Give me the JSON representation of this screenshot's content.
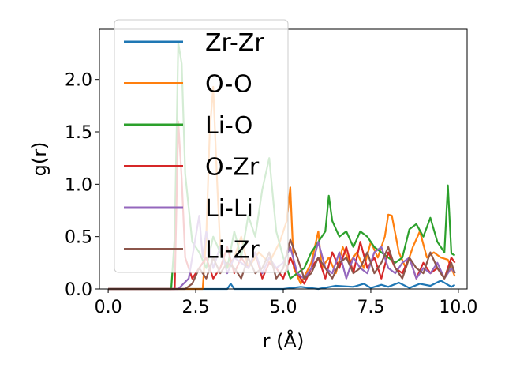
{
  "chart_data": {
    "type": "line",
    "title": "",
    "xlabel": "r (Å)",
    "ylabel": "g(r)",
    "xlim": [
      -0.25,
      10.25
    ],
    "ylim": [
      0.0,
      2.48
    ],
    "xticks": [
      0.0,
      2.5,
      5.0,
      7.5,
      10.0
    ],
    "xtick_labels": [
      "0.0",
      "2.5",
      "5.0",
      "7.5",
      "10.0"
    ],
    "yticks": [
      0.0,
      0.5,
      1.0,
      1.5,
      2.0
    ],
    "ytick_labels": [
      "0.0",
      "0.5",
      "1.0",
      "1.5",
      "2.0"
    ],
    "grid": false,
    "legend_position": "upper-left",
    "series": [
      {
        "name": "Zr-Zr",
        "color": "#1f77b4",
        "x": [
          0,
          1,
          2,
          3,
          3.4,
          3.5,
          3.6,
          4.0,
          5.0,
          5.5,
          6.0,
          6.5,
          7.0,
          7.3,
          7.5,
          7.8,
          8.0,
          8.3,
          8.6,
          8.9,
          9.2,
          9.5,
          9.8,
          9.9
        ],
        "y": [
          0,
          0,
          0,
          0,
          0,
          0.05,
          0,
          0,
          0,
          0.02,
          0,
          0.03,
          0.02,
          0.05,
          0.01,
          0.04,
          0.02,
          0.06,
          0.01,
          0.05,
          0.03,
          0.08,
          0.02,
          0.04
        ]
      },
      {
        "name": "O-O",
        "color": "#ff7f0e",
        "x": [
          0,
          1,
          2,
          2.7,
          2.8,
          2.9,
          3.0,
          3.1,
          3.2,
          3.4,
          3.6,
          3.8,
          4.0,
          4.3,
          4.6,
          4.9,
          5.1,
          5.2,
          5.3,
          5.5,
          5.8,
          6.0,
          6.1,
          6.3,
          6.5,
          6.7,
          6.9,
          7.1,
          7.3,
          7.5,
          7.7,
          7.9,
          8.0,
          8.1,
          8.3,
          8.5,
          8.7,
          8.9,
          9.1,
          9.3,
          9.5,
          9.7,
          9.9
        ],
        "y": [
          0,
          0,
          0,
          0,
          0.5,
          1.5,
          1.93,
          1.1,
          0.4,
          0.2,
          0.3,
          0.5,
          0.2,
          0.35,
          0.25,
          0.45,
          0.65,
          0.97,
          0.2,
          0.05,
          0.25,
          0.55,
          0.2,
          0.3,
          0.15,
          0.4,
          0.25,
          0.35,
          0.2,
          0.45,
          0.3,
          0.5,
          0.71,
          0.7,
          0.35,
          0.2,
          0.4,
          0.55,
          0.3,
          0.35,
          0.3,
          0.28,
          0.12
        ]
      },
      {
        "name": "Li-O",
        "color": "#2ca02c",
        "x": [
          0,
          1,
          1.8,
          1.9,
          2.0,
          2.1,
          2.2,
          2.4,
          2.6,
          2.8,
          3.0,
          3.2,
          3.4,
          3.6,
          3.8,
          4.0,
          4.2,
          4.4,
          4.6,
          4.8,
          5.0,
          5.2,
          5.4,
          5.6,
          5.8,
          6.0,
          6.2,
          6.3,
          6.4,
          6.6,
          6.8,
          7.0,
          7.2,
          7.4,
          7.6,
          7.8,
          8.0,
          8.2,
          8.4,
          8.6,
          8.8,
          9.0,
          9.2,
          9.4,
          9.6,
          9.7,
          9.8,
          9.9
        ],
        "y": [
          0,
          0,
          0,
          0.5,
          2.35,
          2.15,
          1.1,
          0.45,
          0.35,
          0.2,
          0.5,
          0.35,
          0.2,
          0.55,
          0.3,
          0.7,
          0.5,
          0.95,
          1.25,
          0.55,
          0.3,
          0.1,
          0.15,
          0.2,
          0.35,
          0.45,
          0.55,
          0.89,
          0.65,
          0.5,
          0.55,
          0.4,
          0.55,
          0.5,
          0.4,
          0.35,
          0.3,
          0.25,
          0.3,
          0.57,
          0.62,
          0.5,
          0.68,
          0.45,
          0.35,
          0.99,
          0.34,
          0.32
        ]
      },
      {
        "name": "O-Zr",
        "color": "#d62728",
        "x": [
          0,
          1,
          1.9,
          2.0,
          2.1,
          2.2,
          2.4,
          2.6,
          2.8,
          3.0,
          3.2,
          3.4,
          3.6,
          3.8,
          4.0,
          4.2,
          4.4,
          4.6,
          4.8,
          5.0,
          5.2,
          5.4,
          5.6,
          5.8,
          6.0,
          6.2,
          6.4,
          6.6,
          6.8,
          7.0,
          7.2,
          7.4,
          7.6,
          7.8,
          8.0,
          8.2,
          8.4,
          8.6,
          8.8,
          9.0,
          9.2,
          9.4,
          9.6,
          9.8,
          9.9
        ],
        "y": [
          0,
          0,
          0,
          1.6,
          1.05,
          0.3,
          0.1,
          0.2,
          0.3,
          0.1,
          0.2,
          0.4,
          0.15,
          0.3,
          0.2,
          0.35,
          0.1,
          0.25,
          0.2,
          0.1,
          0.3,
          0.15,
          0.05,
          0.2,
          0.3,
          0.1,
          0.35,
          0.2,
          0.4,
          0.15,
          0.45,
          0.2,
          0.3,
          0.1,
          0.35,
          0.2,
          0.15,
          0.3,
          0.1,
          0.25,
          0.15,
          0.2,
          0.1,
          0.3,
          0.25
        ]
      },
      {
        "name": "Li-Li",
        "color": "#9467bd",
        "x": [
          0,
          1,
          2.0,
          2.3,
          2.5,
          2.6,
          2.7,
          2.8,
          3.0,
          3.2,
          3.4,
          3.6,
          3.8,
          4.0,
          4.2,
          4.4,
          4.6,
          4.8,
          5.0,
          5.2,
          5.4,
          5.6,
          5.8,
          6.0,
          6.2,
          6.4,
          6.6,
          6.8,
          7.0,
          7.2,
          7.4,
          7.6,
          7.8,
          8.0,
          8.2,
          8.4,
          8.6,
          8.8,
          9.0,
          9.2,
          9.4,
          9.6,
          9.8,
          9.9
        ],
        "y": [
          0,
          0,
          0,
          0.1,
          0.5,
          0.7,
          0.3,
          0.55,
          0.2,
          0.4,
          0.15,
          0.3,
          0.25,
          0.2,
          0.35,
          0.15,
          0.3,
          0.2,
          0.25,
          0.4,
          0.15,
          0.1,
          0.2,
          0.45,
          0.2,
          0.15,
          0.35,
          0.1,
          0.3,
          0.2,
          0.15,
          0.35,
          0.4,
          0.2,
          0.15,
          0.25,
          0.3,
          0.1,
          0.2,
          0.15,
          0.25,
          0.1,
          0.2,
          0.15
        ]
      },
      {
        "name": "Li-Zr",
        "color": "#8c564b",
        "x": [
          0,
          1,
          2.0,
          2.2,
          2.4,
          2.6,
          2.8,
          3.0,
          3.2,
          3.4,
          3.6,
          3.8,
          4.0,
          4.2,
          4.4,
          4.6,
          4.8,
          5.0,
          5.2,
          5.4,
          5.6,
          5.8,
          6.0,
          6.2,
          6.4,
          6.6,
          6.8,
          7.0,
          7.2,
          7.4,
          7.6,
          7.8,
          8.0,
          8.2,
          8.4,
          8.6,
          8.8,
          9.0,
          9.2,
          9.4,
          9.6,
          9.8,
          9.9
        ],
        "y": [
          0,
          0,
          0,
          0,
          0.05,
          0.2,
          0.1,
          0.3,
          0.15,
          0.25,
          0.2,
          0.1,
          0.3,
          0.15,
          0.2,
          0.35,
          0.1,
          0.2,
          0.47,
          0.3,
          0.1,
          0.15,
          0.3,
          0.2,
          0.1,
          0.25,
          0.3,
          0.15,
          0.2,
          0.35,
          0.15,
          0.25,
          0.4,
          0.2,
          0.1,
          0.3,
          0.2,
          0.15,
          0.35,
          0.2,
          0.1,
          0.25,
          0.15
        ]
      }
    ]
  }
}
